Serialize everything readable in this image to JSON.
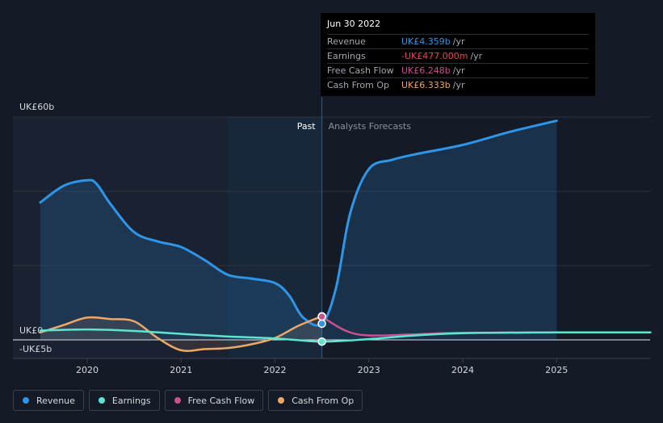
{
  "chart_data": {
    "type": "area",
    "y_axis_labels": {
      "top": "UK£60b",
      "zero": "UK£0",
      "bottom": "-UK£5b"
    },
    "ylim": [
      -5,
      60
    ],
    "x_ticks": [
      "2020",
      "2021",
      "2022",
      "2023",
      "2024",
      "2025"
    ],
    "region_labels": {
      "past": "Past",
      "forecast": "Analysts Forecasts"
    },
    "divider_x": 2022.5,
    "series": [
      {
        "name": "Revenue",
        "color": "#2f95e8",
        "filled": true,
        "x": [
          2019.5,
          2019.75,
          2020.0,
          2020.1,
          2020.25,
          2020.5,
          2020.75,
          2021.0,
          2021.25,
          2021.5,
          2021.75,
          2022.0,
          2022.15,
          2022.3,
          2022.5,
          2022.65,
          2022.8,
          2023.0,
          2023.25,
          2023.5,
          2024.0,
          2024.5,
          2025.0
        ],
        "y": [
          37,
          41.5,
          43,
          42,
          36.5,
          29,
          26.5,
          25,
          21.5,
          17.5,
          16.5,
          15.3,
          12,
          6,
          4.36,
          14,
          34,
          46,
          48.5,
          50,
          52.5,
          56,
          59
        ]
      },
      {
        "name": "Earnings",
        "color": "#5ee5d0",
        "x": [
          2019.5,
          2020.0,
          2020.5,
          2021.0,
          2021.5,
          2022.0,
          2022.5,
          2023.0,
          2023.5,
          2024.0,
          2025.0,
          2026.0
        ],
        "y": [
          2.5,
          2.8,
          2.4,
          1.6,
          0.9,
          0.4,
          -0.477,
          0.2,
          1.2,
          1.8,
          2.0,
          2.0
        ]
      },
      {
        "name": "Free Cash Flow",
        "color": "#cc4f8e",
        "x": [
          2022.5,
          2022.75,
          2023.0,
          2023.5,
          2024.0,
          2025.0
        ],
        "y": [
          6.248,
          2.5,
          1.2,
          1.5,
          1.9,
          2.0
        ]
      },
      {
        "name": "Cash From Op",
        "color": "#eda867",
        "x": [
          2019.5,
          2019.75,
          2020.0,
          2020.25,
          2020.5,
          2020.75,
          2021.0,
          2021.25,
          2021.5,
          2021.75,
          2022.0,
          2022.25,
          2022.5
        ],
        "y": [
          2.0,
          4.0,
          6.0,
          5.6,
          5.0,
          0.5,
          -2.8,
          -2.5,
          -2.2,
          -1.2,
          0.5,
          3.8,
          6.333
        ]
      }
    ]
  },
  "tooltip": {
    "date": "Jun 30 2022",
    "rows": [
      {
        "label": "Revenue",
        "value": "UK£4.359b",
        "unit": "/yr",
        "color": "#2f95e8"
      },
      {
        "label": "Earnings",
        "value": "-UK£477.000m",
        "unit": "/yr",
        "color": "#e5484d"
      },
      {
        "label": "Free Cash Flow",
        "value": "UK£6.248b",
        "unit": "/yr",
        "color": "#cc4f8e"
      },
      {
        "label": "Cash From Op",
        "value": "UK£6.333b",
        "unit": "/yr",
        "color": "#eda867"
      }
    ]
  },
  "legend": [
    {
      "label": "Revenue",
      "color": "#2f95e8"
    },
    {
      "label": "Earnings",
      "color": "#5ee5d0"
    },
    {
      "label": "Free Cash Flow",
      "color": "#cc4f8e"
    },
    {
      "label": "Cash From Op",
      "color": "#eda867"
    }
  ]
}
